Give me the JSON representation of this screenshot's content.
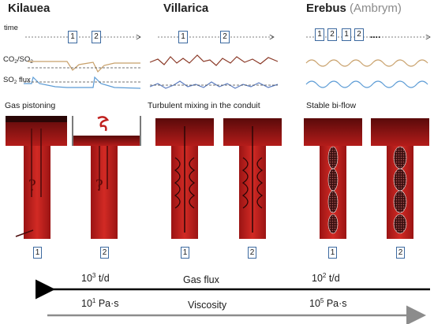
{
  "columns": {
    "kilauea": "Kilauea",
    "villarica": "Villarica",
    "erebus": "Erebus",
    "ambrym": "(Ambrym)"
  },
  "time_label": "time",
  "gas_labels": {
    "co2": "CO",
    "co2_sub": "2",
    "slash": "/SO",
    "so2_sub": "2",
    "so2": "SO",
    "so2_sub2": "2",
    "flux": " flux"
  },
  "regime_labels": {
    "kilauea": "Gas pistoning",
    "villarica": "Turbulent mixing in the conduit",
    "erebus": "Stable bi-flow"
  },
  "time_markers": {
    "kilauea": [
      "1",
      "2"
    ],
    "villarica": [
      "1",
      "2"
    ],
    "erebus": [
      "1",
      "2",
      "1",
      "2"
    ],
    "ellipsis": "...."
  },
  "conduit_numbers": [
    "1",
    "2",
    "1",
    "2",
    "1",
    "2"
  ],
  "question_mark": "?",
  "gas_flux": {
    "label": "Gas flux",
    "left_base": "10",
    "left_exp": "3",
    "left_unit": " t/d",
    "right_base": "10",
    "right_exp": "2",
    "right_unit": " t/d"
  },
  "viscosity": {
    "label": "Viscosity",
    "left_base": "10",
    "left_exp": "1",
    "left_unit": " Pa·s",
    "right_base": "10",
    "right_exp": "5",
    "right_unit": " Pa·s"
  },
  "colors": {
    "magma_dark": "#7a0c0c",
    "magma": "#c0201e",
    "magma_light": "#e0443e",
    "co2_line": "#c8a06a",
    "so2_line": "#5b9bd5",
    "villarica_top": "#8b3a28",
    "villarica_bottom": "#5b7cc0",
    "arrow_black": "#000000",
    "arrow_grey": "#8c8c8c",
    "box_border": "#3d6aa0"
  }
}
